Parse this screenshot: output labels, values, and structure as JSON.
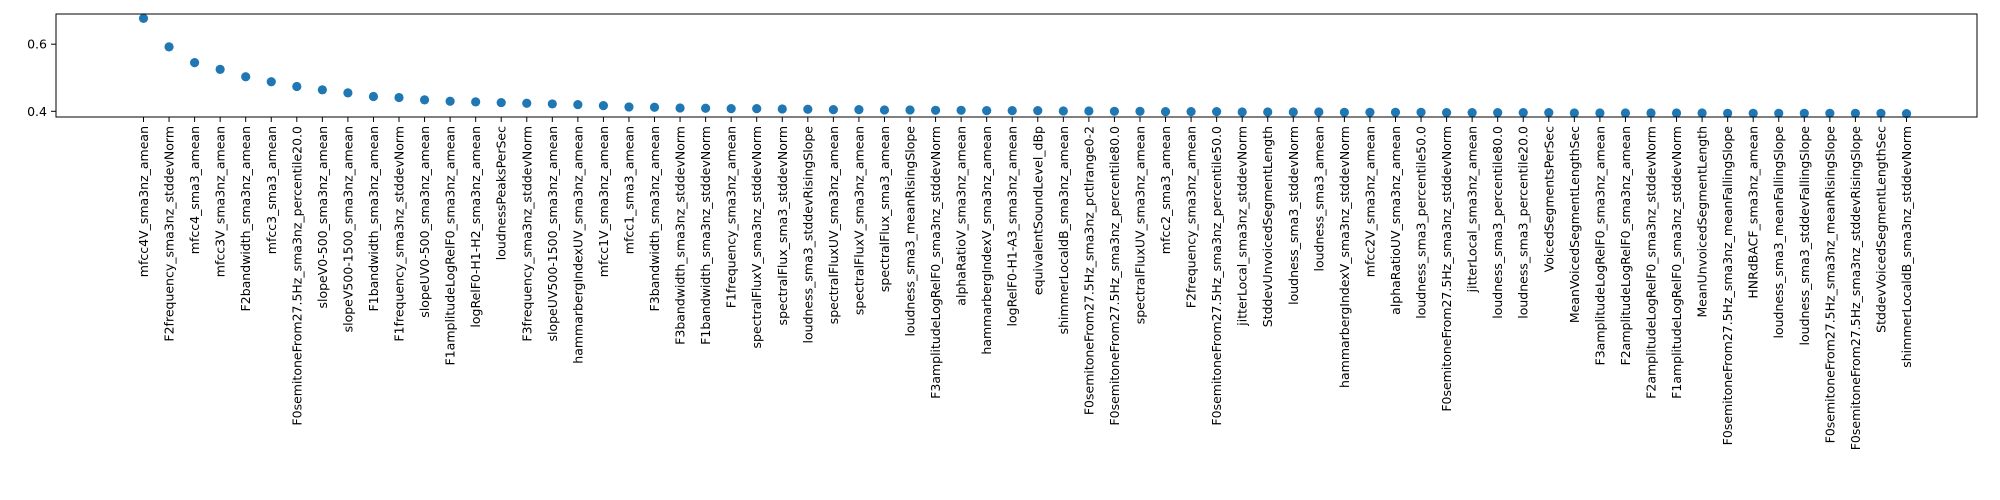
{
  "chart_data": {
    "type": "scatter",
    "title": "",
    "xlabel": "",
    "ylabel": "",
    "ylim": [
      0.383,
      0.69
    ],
    "yticks": [
      0.4,
      0.6
    ],
    "ytick_labels": [
      "0.4",
      "0.6"
    ],
    "grid": false,
    "marker_color": "#1f77b4",
    "categories": [
      "mfcc4V_sma3nz_amean",
      "F2frequency_sma3nz_stddevNorm",
      "mfcc4_sma3_amean",
      "mfcc3V_sma3nz_amean",
      "F2bandwidth_sma3nz_amean",
      "mfcc3_sma3_amean",
      "F0semitoneFrom27.5Hz_sma3nz_percentile20.0",
      "slopeV0-500_sma3nz_amean",
      "slopeV500-1500_sma3nz_amean",
      "F1bandwidth_sma3nz_amean",
      "F1frequency_sma3nz_stddevNorm",
      "slopeUV0-500_sma3nz_amean",
      "F1amplitudeLogRelF0_sma3nz_amean",
      "logRelF0-H1-H2_sma3nz_amean",
      "loudnessPeaksPerSec",
      "F3frequency_sma3nz_stddevNorm",
      "slopeUV500-1500_sma3nz_amean",
      "hammarbergIndexUV_sma3nz_amean",
      "mfcc1V_sma3nz_amean",
      "mfcc1_sma3_amean",
      "F3bandwidth_sma3nz_amean",
      "F3bandwidth_sma3nz_stddevNorm",
      "F1bandwidth_sma3nz_stddevNorm",
      "F1frequency_sma3nz_amean",
      "spectralFluxV_sma3nz_stddevNorm",
      "spectralFlux_sma3_stddevNorm",
      "loudness_sma3_stddevRisingSlope",
      "spectralFluxUV_sma3nz_amean",
      "spectralFluxV_sma3nz_amean",
      "spectralFlux_sma3_amean",
      "loudness_sma3_meanRisingSlope",
      "F3amplitudeLogRelF0_sma3nz_stddevNorm",
      "alphaRatioV_sma3nz_amean",
      "hammarbergIndexV_sma3nz_amean",
      "logRelF0-H1-A3_sma3nz_amean",
      "equivalentSoundLevel_dBp",
      "shimmerLocaldB_sma3nz_amean",
      "F0semitoneFrom27.5Hz_sma3nz_pctlrange0-2",
      "F0semitoneFrom27.5Hz_sma3nz_percentile80.0",
      "spectralFluxUV_sma3nz_amean",
      "mfcc2_sma3_amean",
      "F2frequency_sma3nz_amean",
      "F0semitoneFrom27.5Hz_sma3nz_percentile50.0",
      "jitterLocal_sma3nz_stddevNorm",
      "StddevUnvoicedSegmentLength",
      "loudness_sma3_stddevNorm",
      "loudness_sma3_amean",
      "hammarbergIndexV_sma3nz_stddevNorm",
      "mfcc2V_sma3nz_amean",
      "alphaRatioUV_sma3nz_amean",
      "loudness_sma3_percentile50.0",
      "F0semitoneFrom27.5Hz_sma3nz_stddevNorm",
      "jitterLocal_sma3nz_amean",
      "loudness_sma3_percentile80.0",
      "loudness_sma3_percentile20.0",
      "VoicedSegmentsPerSec",
      "MeanVoicedSegmentLengthSec",
      "F3amplitudeLogRelF0_sma3nz_amean",
      "F2amplitudeLogRelF0_sma3nz_amean",
      "F2amplitudeLogRelF0_sma3nz_stddevNorm",
      "F1amplitudeLogRelF0_sma3nz_stddevNorm",
      "MeanUnvoicedSegmentLength",
      "F0semitoneFrom27.5Hz_sma3nz_meanFallingSlope",
      "HNRdBACF_sma3nz_amean",
      "loudness_sma3_meanFallingSlope",
      "loudness_sma3_stddevFallingSlope",
      "F0semitoneFrom27.5Hz_sma3nz_meanRisingSlope",
      "F0semitoneFrom27.5Hz_sma3nz_stddevRisingSlope",
      "StddevVoicedSegmentLengthSec",
      "shimmerLocaldB_sma3nz_stddevNorm"
    ],
    "values": [
      0.677,
      0.592,
      0.545,
      0.525,
      0.503,
      0.488,
      0.474,
      0.464,
      0.455,
      0.444,
      0.441,
      0.434,
      0.43,
      0.428,
      0.426,
      0.424,
      0.422,
      0.42,
      0.417,
      0.413,
      0.412,
      0.41,
      0.409,
      0.408,
      0.408,
      0.407,
      0.406,
      0.405,
      0.405,
      0.404,
      0.404,
      0.403,
      0.403,
      0.402,
      0.402,
      0.402,
      0.401,
      0.401,
      0.4,
      0.4,
      0.399,
      0.399,
      0.399,
      0.398,
      0.398,
      0.398,
      0.398,
      0.397,
      0.397,
      0.397,
      0.397,
      0.396,
      0.396,
      0.396,
      0.396,
      0.396,
      0.395,
      0.395,
      0.395,
      0.395,
      0.395,
      0.395,
      0.394,
      0.394,
      0.394,
      0.394,
      0.394,
      0.394,
      0.394,
      0.393
    ]
  }
}
